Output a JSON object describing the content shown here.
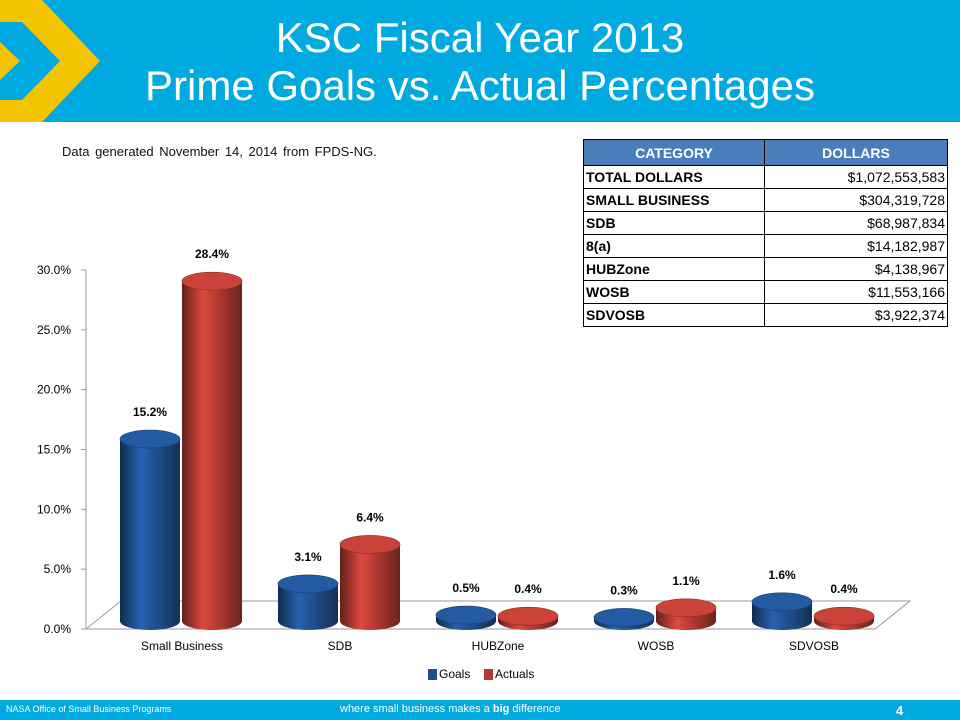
{
  "title_line1": "KSC Fiscal Year 2013",
  "title_line2": "Prime Goals vs. Actual Percentages",
  "source_note": "Data generated November 14, 2014 from FPDS-NG.",
  "table": {
    "headers": [
      "CATEGORY",
      "DOLLARS"
    ],
    "rows": [
      [
        "TOTAL DOLLARS",
        "$1,072,553,583"
      ],
      [
        "SMALL BUSINESS",
        "$304,319,728"
      ],
      [
        "SDB",
        "$68,987,834"
      ],
      [
        "8(a)",
        "$14,182,987"
      ],
      [
        "HUBZone",
        "$4,138,967"
      ],
      [
        "WOSB",
        "$11,553,166"
      ],
      [
        "SDVOSB",
        "$3,922,374"
      ]
    ]
  },
  "chart_data": {
    "type": "bar",
    "categories": [
      "Small Business",
      "SDB",
      "HUBZone",
      "WOSB",
      "SDVOSB"
    ],
    "series": [
      {
        "name": "Goals",
        "values": [
          15.2,
          3.1,
          0.5,
          0.3,
          1.6
        ],
        "labels": [
          "15.2%",
          "3.1%",
          "0.5%",
          "0.3%",
          "1.6%"
        ],
        "color": "#1f4e8c"
      },
      {
        "name": "Actuals",
        "values": [
          28.4,
          6.4,
          0.4,
          1.1,
          0.4
        ],
        "labels": [
          "28.4%",
          "6.4%",
          "0.4%",
          "1.1%",
          "0.4%"
        ],
        "color": "#b03a32"
      }
    ],
    "ylim": [
      0,
      30
    ],
    "yticks": [
      "0.0%",
      "5.0%",
      "10.0%",
      "15.0%",
      "20.0%",
      "25.0%",
      "30.0%"
    ],
    "legend_position": "bottom",
    "grid": false
  },
  "footer": {
    "left": "NASA Office of Small Business Programs",
    "tagline_pre": "where small business makes a ",
    "tagline_bold": "big",
    "tagline_post": " difference",
    "page_number": "4"
  },
  "colors": {
    "header": "#00a9e0",
    "chevron": "#f5c400",
    "table_header": "#4a7ebb"
  }
}
